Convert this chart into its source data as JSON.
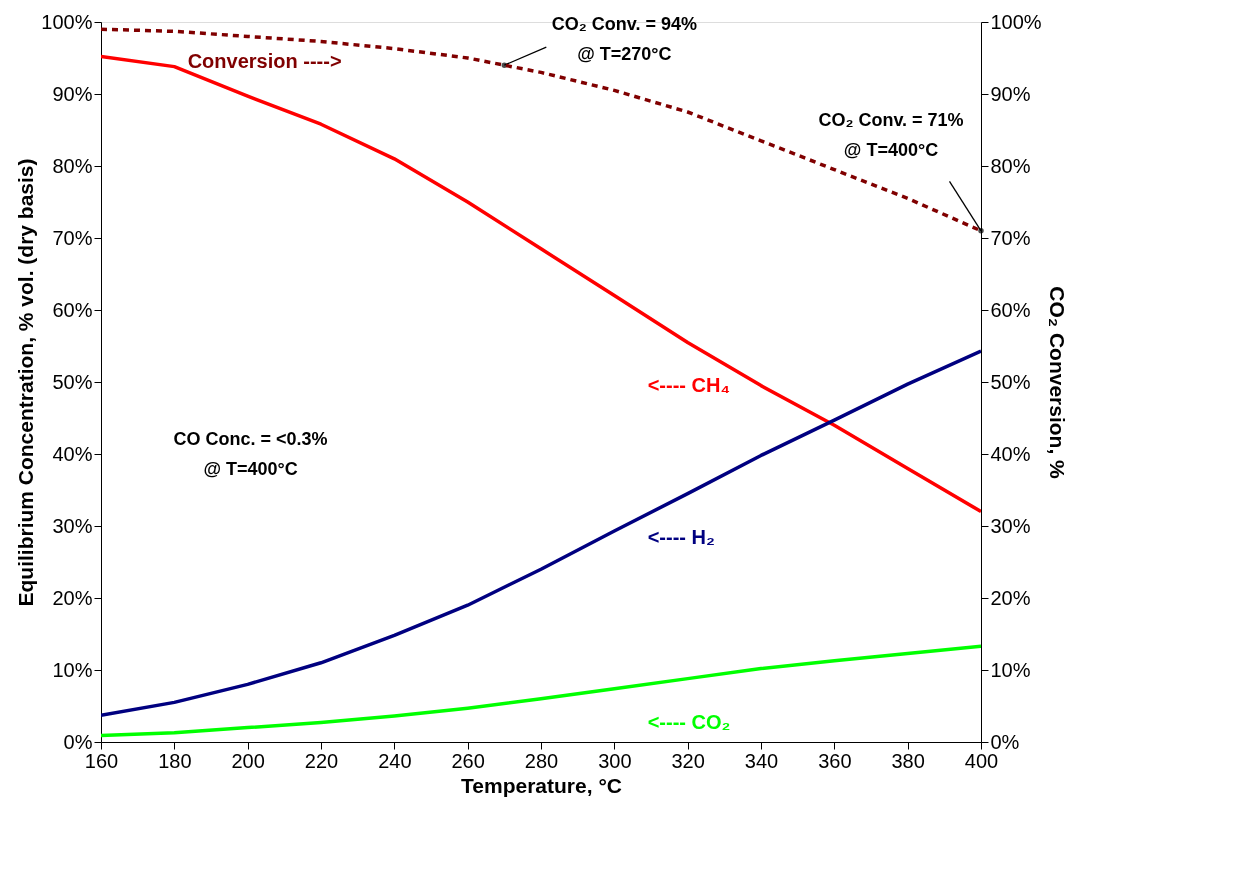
{
  "chart_data": {
    "type": "line",
    "xlabel": "Temperature, °C",
    "ylabel": "Equilibrium Concentration, % vol. (dry basis)",
    "y2label": "CO₂ Conversion, %",
    "x": [
      160,
      180,
      200,
      220,
      240,
      260,
      280,
      300,
      320,
      340,
      360,
      380,
      400
    ],
    "series": [
      {
        "name": "<---- CH₄",
        "color": "#ff0000",
        "values": [
          95.2,
          93.8,
          89.7,
          85.8,
          81,
          75,
          68.5,
          62,
          55.5,
          49.5,
          44,
          38,
          32
        ]
      },
      {
        "name": "<---- H₂",
        "color": "#000080",
        "values": [
          3.7,
          5.5,
          8,
          11,
          14.8,
          19,
          24,
          29.3,
          34.5,
          39.8,
          44.7,
          49.7,
          54.3
        ]
      },
      {
        "name": "<---- CO₂",
        "color": "#00ff00",
        "values": [
          0.9,
          1.3,
          2,
          2.7,
          3.6,
          4.7,
          6,
          7.4,
          8.8,
          10.2,
          11.3,
          12.3,
          13.3
        ]
      },
      {
        "name": "Conversion ---->",
        "color": "#800000",
        "axis": "y2",
        "line_style": "dashed",
        "values": [
          99,
          98.7,
          98,
          97.3,
          96.3,
          95,
          93,
          90.5,
          87.5,
          83.5,
          79.5,
          75.5,
          71
        ]
      }
    ],
    "xlim": [
      160,
      400
    ],
    "xticks": [
      160,
      180,
      200,
      220,
      240,
      260,
      280,
      300,
      320,
      340,
      360,
      380,
      400
    ],
    "ylim": [
      0,
      100
    ],
    "yticks": [
      {
        "value": 0,
        "label": "0%"
      },
      {
        "value": 10,
        "label": "10%"
      },
      {
        "value": 20,
        "label": "20%"
      },
      {
        "value": 30,
        "label": "30%"
      },
      {
        "value": 40,
        "label": "40%"
      },
      {
        "value": 50,
        "label": "50%"
      },
      {
        "value": 60,
        "label": "60%"
      },
      {
        "value": 70,
        "label": "70%"
      },
      {
        "value": 80,
        "label": "80%"
      },
      {
        "value": 90,
        "label": "90%"
      },
      {
        "value": 100,
        "label": "100%"
      }
    ],
    "y2lim": [
      0,
      100
    ],
    "y2ticks": [
      {
        "value": 0,
        "label": "0%"
      },
      {
        "value": 10,
        "label": "10%"
      },
      {
        "value": 20,
        "label": "20%"
      },
      {
        "value": 30,
        "label": "30%"
      },
      {
        "value": 40,
        "label": "40%"
      },
      {
        "value": 50,
        "label": "50%"
      },
      {
        "value": 60,
        "label": "60%"
      },
      {
        "value": 70,
        "label": "70%"
      },
      {
        "value": 80,
        "label": "80%"
      },
      {
        "value": 90,
        "label": "90%"
      },
      {
        "value": 100,
        "label": "100%"
      }
    ],
    "annotations": [
      {
        "text": "CO₂ Conv. = 94%\n@ T=270°C",
        "x": 270,
        "y": 94
      },
      {
        "text": "CO₂ Conv. = 71%\n@ T=400°C",
        "x": 400,
        "y": 71
      },
      "CO Conc. = <0.3%\n@ T=400°C"
    ],
    "grid": false
  }
}
